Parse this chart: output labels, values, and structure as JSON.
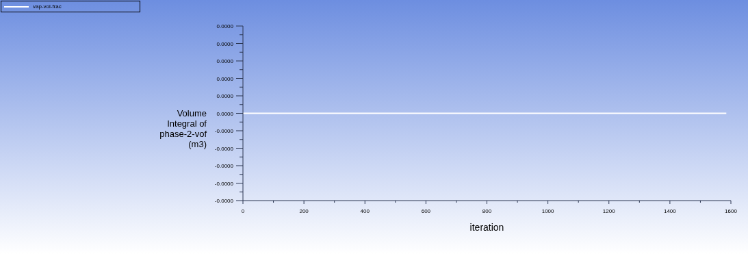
{
  "chart_data": {
    "type": "line",
    "xlabel": "iteration",
    "ylabel": "Volume Integral of phase-2-vof (m3)",
    "x": [
      0,
      1585
    ],
    "series": [
      {
        "name": "vap-vol-frac",
        "color": "#ffffff",
        "values": [
          0,
          0
        ]
      }
    ],
    "xlim": [
      0,
      1600
    ],
    "xticks": [
      0,
      {
        "value": 100,
        "label": null
      },
      200,
      {
        "value": 300,
        "label": null
      },
      400,
      {
        "value": 500,
        "label": null
      },
      600,
      {
        "value": 700,
        "label": null
      },
      800,
      {
        "value": 900,
        "label": null
      },
      1000,
      {
        "value": 1100,
        "label": null
      },
      1200,
      {
        "value": 1300,
        "label": null
      },
      1400,
      {
        "value": 1500,
        "label": null
      },
      1600
    ],
    "ylim": [
      -5e-05,
      5e-05
    ],
    "yticks": [
      {
        "value": -5e-05,
        "label": "-0.0000"
      },
      {
        "value": -4.5e-05,
        "label": null
      },
      {
        "value": -4e-05,
        "label": "-0.0000"
      },
      {
        "value": -3.5e-05,
        "label": null
      },
      {
        "value": -3e-05,
        "label": "-0.0000"
      },
      {
        "value": -2.5e-05,
        "label": null
      },
      {
        "value": -2e-05,
        "label": "-0.0000"
      },
      {
        "value": -1.5e-05,
        "label": null
      },
      {
        "value": -1e-05,
        "label": "-0.0000"
      },
      {
        "value": -5e-06,
        "label": null
      },
      {
        "value": 0,
        "label": "0.0000"
      },
      {
        "value": 5e-06,
        "label": null
      },
      {
        "value": 1e-05,
        "label": "0.0000"
      },
      {
        "value": 1.5e-05,
        "label": null
      },
      {
        "value": 2e-05,
        "label": "0.0000"
      },
      {
        "value": 2.5e-05,
        "label": null
      },
      {
        "value": 3e-05,
        "label": "0.0000"
      },
      {
        "value": 3.5e-05,
        "label": null
      },
      {
        "value": 4e-05,
        "label": "0.0000"
      },
      {
        "value": 4.5e-05,
        "label": null
      },
      {
        "value": 5e-05,
        "label": "0.0000"
      }
    ],
    "legend": "top left",
    "marker": "none",
    "line_style": "solid"
  }
}
